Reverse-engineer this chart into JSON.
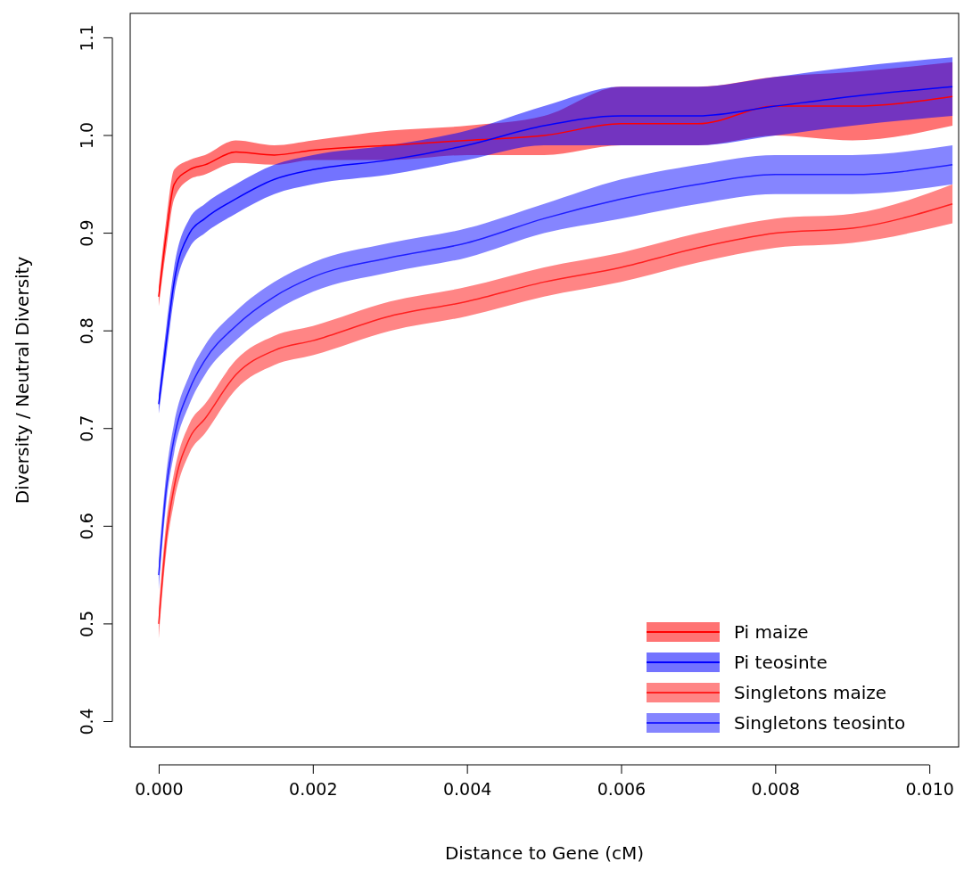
{
  "chart_data": {
    "type": "line",
    "xlabel": "Distance to Gene (cM)",
    "ylabel": "Diversity / Neutral Diversity",
    "x": [
      0,
      0.0001,
      0.0002,
      0.0004,
      0.0006,
      0.001,
      0.0015,
      0.002,
      0.003,
      0.004,
      0.005,
      0.006,
      0.007,
      0.008,
      0.009,
      0.0103
    ],
    "series": [
      {
        "name": "Pi maize",
        "color": "#ff0000",
        "values": [
          0.835,
          0.9,
          0.95,
          0.965,
          0.97,
          0.983,
          0.98,
          0.985,
          0.99,
          0.995,
          1.0,
          1.012,
          1.012,
          1.03,
          1.03,
          1.04
        ],
        "lower": [
          0.825,
          0.885,
          0.935,
          0.955,
          0.96,
          0.972,
          0.97,
          0.975,
          0.975,
          0.98,
          0.98,
          0.99,
          0.99,
          1.0,
          0.995,
          1.01
        ],
        "upper": [
          0.845,
          0.915,
          0.965,
          0.975,
          0.98,
          0.995,
          0.99,
          0.995,
          1.005,
          1.01,
          1.02,
          1.05,
          1.05,
          1.06,
          1.065,
          1.075
        ]
      },
      {
        "name": "Pi teosinte",
        "color": "#0000ff",
        "values": [
          0.725,
          0.79,
          0.85,
          0.9,
          0.915,
          0.935,
          0.955,
          0.965,
          0.975,
          0.99,
          1.01,
          1.02,
          1.02,
          1.03,
          1.04,
          1.05
        ],
        "lower": [
          0.715,
          0.775,
          0.835,
          0.885,
          0.9,
          0.92,
          0.94,
          0.95,
          0.96,
          0.975,
          0.99,
          0.99,
          0.99,
          1.0,
          1.01,
          1.02
        ],
        "upper": [
          0.735,
          0.805,
          0.865,
          0.915,
          0.93,
          0.95,
          0.97,
          0.98,
          0.99,
          1.005,
          1.03,
          1.05,
          1.05,
          1.06,
          1.07,
          1.08
        ]
      },
      {
        "name": "Singletons maize",
        "color": "#ff2020",
        "values": [
          0.5,
          0.59,
          0.64,
          0.69,
          0.71,
          0.755,
          0.78,
          0.79,
          0.815,
          0.83,
          0.85,
          0.865,
          0.885,
          0.9,
          0.905,
          0.93
        ],
        "lower": [
          0.485,
          0.575,
          0.625,
          0.675,
          0.695,
          0.74,
          0.765,
          0.775,
          0.8,
          0.815,
          0.835,
          0.85,
          0.87,
          0.885,
          0.89,
          0.91
        ],
        "upper": [
          0.515,
          0.605,
          0.655,
          0.705,
          0.725,
          0.77,
          0.795,
          0.805,
          0.83,
          0.845,
          0.865,
          0.88,
          0.9,
          0.915,
          0.92,
          0.95
        ]
      },
      {
        "name": "Singletons teosinto",
        "color": "#2020ff",
        "values": [
          0.55,
          0.64,
          0.69,
          0.74,
          0.77,
          0.805,
          0.835,
          0.855,
          0.875,
          0.89,
          0.915,
          0.935,
          0.95,
          0.96,
          0.96,
          0.97
        ],
        "lower": [
          0.535,
          0.625,
          0.675,
          0.725,
          0.755,
          0.79,
          0.82,
          0.84,
          0.86,
          0.875,
          0.9,
          0.915,
          0.93,
          0.94,
          0.94,
          0.95
        ],
        "upper": [
          0.565,
          0.655,
          0.705,
          0.755,
          0.785,
          0.82,
          0.85,
          0.87,
          0.89,
          0.905,
          0.93,
          0.955,
          0.97,
          0.98,
          0.98,
          0.99
        ]
      }
    ],
    "xlim": [
      -0.00037,
      0.01038
    ],
    "ylim": [
      0.374,
      1.125
    ],
    "xticks": [
      {
        "value": 0,
        "label": "0.000"
      },
      {
        "value": 0.002,
        "label": "0.002"
      },
      {
        "value": 0.004,
        "label": "0.004"
      },
      {
        "value": 0.006,
        "label": "0.006"
      },
      {
        "value": 0.008,
        "label": "0.008"
      },
      {
        "value": 0.01,
        "label": "0.010"
      }
    ],
    "yticks": [
      0.4,
      0.5,
      0.6,
      0.7,
      0.8,
      0.9,
      {
        "value": 1,
        "label": "1.0"
      },
      1.1
    ],
    "legend": "bottom right",
    "grid": false
  }
}
